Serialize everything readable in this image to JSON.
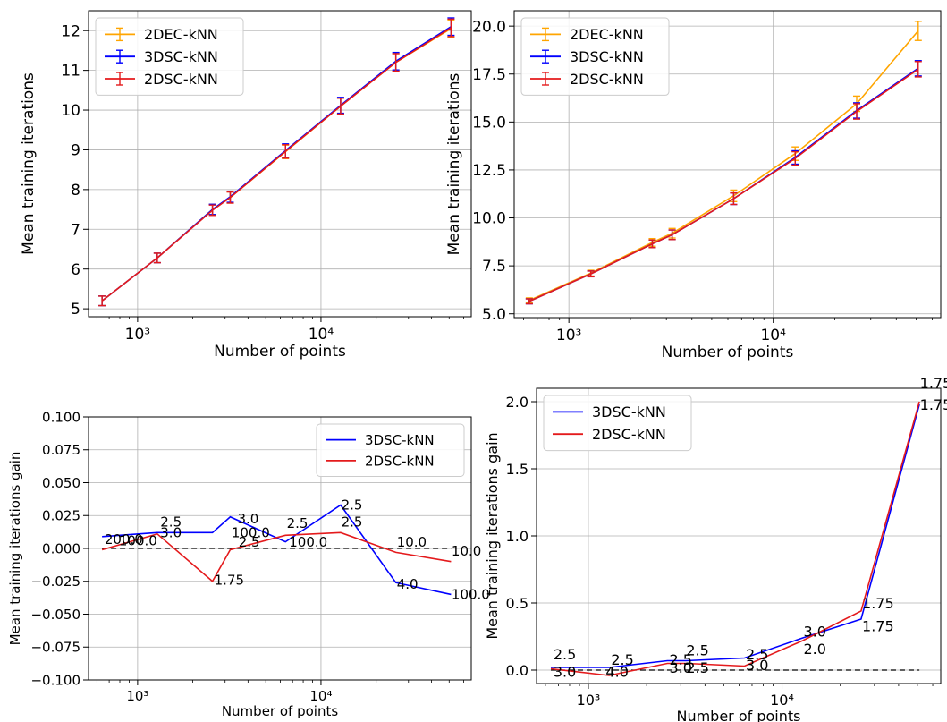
{
  "chart_data": [
    {
      "type": "line",
      "xlabel": "Number of points",
      "ylabel": "Mean training iterations",
      "xscale": "log",
      "xlim": [
        540,
        66000
      ],
      "ylim": [
        4.8,
        12.5
      ],
      "yticks": [
        5,
        6,
        7,
        8,
        9,
        10,
        11,
        12
      ],
      "ytick_labels": [
        "5",
        "6",
        "7",
        "8",
        "9",
        "10",
        "11",
        "12"
      ],
      "xticks": [
        1000,
        10000
      ],
      "xtick_labels": [
        "10³",
        "10⁴"
      ],
      "grid": true,
      "legend": "top-left",
      "x": [
        640,
        1280,
        2560,
        3200,
        6400,
        12800,
        25600,
        51200
      ],
      "series": [
        {
          "name": "2DEC-kNN",
          "color": "#ffa500",
          "values": [
            5.2,
            6.28,
            7.5,
            7.8,
            8.95,
            10.1,
            11.2,
            12.05
          ],
          "err": [
            0.12,
            0.12,
            0.13,
            0.14,
            0.17,
            0.2,
            0.22,
            0.22
          ]
        },
        {
          "name": "3DSC-kNN",
          "color": "#0000ff",
          "values": [
            5.2,
            6.28,
            7.5,
            7.82,
            8.98,
            10.12,
            11.23,
            12.1
          ],
          "err": [
            0.12,
            0.12,
            0.13,
            0.14,
            0.17,
            0.2,
            0.22,
            0.22
          ]
        },
        {
          "name": "2DSC-kNN",
          "color": "#e41a1c",
          "values": [
            5.2,
            6.28,
            7.48,
            7.8,
            8.96,
            10.1,
            11.2,
            12.07
          ],
          "err": [
            0.12,
            0.12,
            0.13,
            0.14,
            0.17,
            0.2,
            0.22,
            0.22
          ]
        }
      ]
    },
    {
      "type": "line",
      "xlabel": "Number of points",
      "ylabel": "Mean training iterations",
      "xscale": "log",
      "xlim": [
        540,
        66000
      ],
      "ylim": [
        4.8,
        20.8
      ],
      "yticks": [
        5.0,
        7.5,
        10.0,
        12.5,
        15.0,
        17.5,
        20.0
      ],
      "ytick_labels": [
        "5.0",
        "7.5",
        "10.0",
        "12.5",
        "15.0",
        "17.5",
        "20.0"
      ],
      "xticks": [
        1000,
        10000
      ],
      "xtick_labels": [
        "10³",
        "10⁴"
      ],
      "grid": true,
      "legend": "top-left",
      "x": [
        640,
        1280,
        2560,
        3200,
        6400,
        12800,
        25600,
        51200
      ],
      "series": [
        {
          "name": "2DEC-kNN",
          "color": "#ffa500",
          "values": [
            5.7,
            7.12,
            8.72,
            9.2,
            11.15,
            13.35,
            15.95,
            19.75
          ],
          "err": [
            0.13,
            0.15,
            0.2,
            0.25,
            0.3,
            0.35,
            0.4,
            0.5
          ]
        },
        {
          "name": "3DSC-kNN",
          "color": "#0000ff",
          "values": [
            5.65,
            7.08,
            8.65,
            9.12,
            11.0,
            13.15,
            15.6,
            17.8
          ],
          "err": [
            0.13,
            0.15,
            0.2,
            0.25,
            0.3,
            0.35,
            0.4,
            0.4
          ]
        },
        {
          "name": "2DSC-kNN",
          "color": "#e41a1c",
          "values": [
            5.65,
            7.08,
            8.65,
            9.12,
            11.0,
            13.1,
            15.55,
            17.75
          ],
          "err": [
            0.13,
            0.15,
            0.2,
            0.25,
            0.3,
            0.35,
            0.4,
            0.4
          ]
        }
      ]
    },
    {
      "type": "line",
      "xlabel": "Number of points",
      "ylabel": "Mean training iterations gain",
      "xscale": "log",
      "xlim": [
        540,
        66000
      ],
      "ylim": [
        -0.1,
        0.1
      ],
      "yticks": [
        -0.1,
        -0.075,
        -0.05,
        -0.025,
        0.0,
        0.025,
        0.05,
        0.075,
        0.1
      ],
      "ytick_labels": [
        "−0.100",
        "−0.075",
        "−0.050",
        "−0.025",
        "0.000",
        "0.025",
        "0.050",
        "0.075",
        "0.100"
      ],
      "xticks": [
        1000,
        10000
      ],
      "xtick_labels": [
        "10³",
        "10⁴"
      ],
      "grid": true,
      "legend": "top-right",
      "baseline": 0,
      "x": [
        640,
        1280,
        2560,
        3200,
        6400,
        12800,
        25600,
        51200
      ],
      "series": [
        {
          "name": "3DSC-kNN",
          "color": "#0000ff",
          "values": [
            0.009,
            0.012,
            0.012,
            0.024,
            0.005,
            0.033,
            -0.026,
            -0.035
          ],
          "labels": [
            "200.0",
            "2.5",
            "3.0",
            "3.0",
            "2.5",
            "2.5",
            "4.0",
            "100.0"
          ]
        },
        {
          "name": "2DSC-kNN",
          "color": "#e41a1c",
          "values": [
            -0.001,
            0.011,
            -0.025,
            -0.001,
            0.01,
            0.012,
            -0.003,
            -0.01
          ],
          "labels": [
            "100.0",
            "3.0",
            "1.75",
            "2.5",
            "100.0",
            "2.5",
            "10.0",
            "10.0"
          ]
        }
      ],
      "annotations": [
        {
          "text": "200.0",
          "x": 660,
          "y": 0.0035
        },
        {
          "text": "100.0",
          "x": 790,
          "y": 0.0025
        },
        {
          "text": "2.5",
          "x": 1330,
          "y": 0.0165
        },
        {
          "text": "3.0",
          "x": 1330,
          "y": 0.0085
        },
        {
          "text": "1.75",
          "x": 2620,
          "y": -0.0275
        },
        {
          "text": "3.0",
          "x": 3500,
          "y": 0.019
        },
        {
          "text": "100.0",
          "x": 3250,
          "y": 0.0085
        },
        {
          "text": "2.5",
          "x": 3550,
          "y": 0.0015
        },
        {
          "text": "2.5",
          "x": 6500,
          "y": 0.0155
        },
        {
          "text": "100.0",
          "x": 6700,
          "y": 0.0015
        },
        {
          "text": "2.5",
          "x": 12900,
          "y": 0.0295
        },
        {
          "text": "2.5",
          "x": 12900,
          "y": 0.0165
        },
        {
          "text": "10.0",
          "x": 25900,
          "y": 0.0015
        },
        {
          "text": "4.0",
          "x": 25900,
          "y": -0.0305
        },
        {
          "text": "10.0",
          "x": 51500,
          "y": -0.0055
        },
        {
          "text": "100.0",
          "x": 51500,
          "y": -0.0385
        }
      ]
    },
    {
      "type": "line",
      "xlabel": "Number of points",
      "ylabel": "Mean training iterations gain",
      "xscale": "log",
      "xlim": [
        540,
        66000
      ],
      "ylim": [
        -0.1,
        2.1
      ],
      "yticks": [
        0.0,
        0.5,
        1.0,
        1.5,
        2.0
      ],
      "ytick_labels": [
        "0.0",
        "0.5",
        "1.0",
        "1.5",
        "2.0"
      ],
      "xticks": [
        1000,
        10000
      ],
      "xtick_labels": [
        "10³",
        "10⁴"
      ],
      "grid": true,
      "legend": "top-left",
      "baseline": 0,
      "x": [
        640,
        1280,
        2560,
        3200,
        6400,
        12800,
        25600,
        51200
      ],
      "series": [
        {
          "name": "3DSC-kNN",
          "color": "#0000ff",
          "values": [
            0.02,
            0.02,
            0.07,
            0.07,
            0.09,
            0.24,
            0.38,
            1.98
          ],
          "labels": [
            "2.5",
            "2.5",
            "2.5",
            "2.5",
            "2.5",
            "3.0",
            "1.75",
            "1.75"
          ]
        },
        {
          "name": "2DSC-kNN",
          "color": "#e41a1c",
          "values": [
            0.01,
            -0.04,
            0.05,
            0.05,
            0.03,
            0.22,
            0.44,
            2.0
          ],
          "labels": [
            "3.0",
            "4.0",
            "3.0",
            "2.5",
            "3.0",
            "2.0",
            "1.75",
            "1.75"
          ]
        }
      ],
      "annotations": [
        {
          "text": "2.5",
          "x": 660,
          "y": 0.08
        },
        {
          "text": "3.0",
          "x": 660,
          "y": -0.05
        },
        {
          "text": "2.5",
          "x": 1310,
          "y": 0.04
        },
        {
          "text": "4.0",
          "x": 1230,
          "y": -0.05
        },
        {
          "text": "2.5",
          "x": 2620,
          "y": 0.04
        },
        {
          "text": "3.0",
          "x": 2620,
          "y": -0.02
        },
        {
          "text": "2.5",
          "x": 3200,
          "y": 0.11
        },
        {
          "text": "2.5",
          "x": 3200,
          "y": -0.02
        },
        {
          "text": "2.5",
          "x": 6500,
          "y": 0.08
        },
        {
          "text": "3.0",
          "x": 6500,
          "y": 0.0
        },
        {
          "text": "3.0",
          "x": 12900,
          "y": 0.25
        },
        {
          "text": "2.0",
          "x": 12900,
          "y": 0.12
        },
        {
          "text": "1.75",
          "x": 25900,
          "y": 0.46
        },
        {
          "text": "1.75",
          "x": 25900,
          "y": 0.29
        },
        {
          "text": "1.75",
          "x": 51500,
          "y": 2.1
        },
        {
          "text": "1.75",
          "x": 51500,
          "y": 1.94
        }
      ]
    }
  ]
}
